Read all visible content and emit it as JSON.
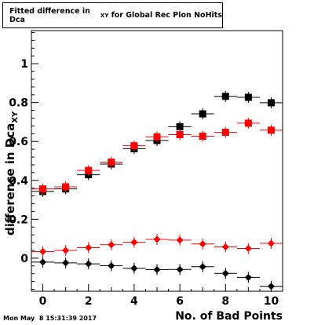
{
  "title": {
    "main": "Fitted difference in Dca",
    "sub": "XY",
    "rest": " for Global Rec Pion NoHits"
  },
  "ylabel": {
    "main": "difference in Dca",
    "sub": "XY"
  },
  "xlabel": "No. of Bad Points",
  "timestamp": "Mon May  8 15:31:39 2017",
  "colors": {
    "series_black": "#000000",
    "series_red": "#ff0000"
  },
  "chart_data": {
    "type": "scatter",
    "xlim": [
      -0.5,
      10.5
    ],
    "ylim": [
      -0.17,
      1.17
    ],
    "xticks": [
      0,
      2,
      4,
      6,
      8,
      10
    ],
    "yticks": [
      0,
      0.2,
      0.4,
      0.6,
      0.8,
      1
    ],
    "yticklabels": [
      "0",
      "0.2",
      "0.4",
      "0.6",
      "0.8",
      "1"
    ],
    "grid": false,
    "series": [
      {
        "marker": "square",
        "color": "#000000",
        "x": [
          0,
          1,
          2,
          3,
          4,
          5,
          6,
          7,
          8,
          9,
          10
        ],
        "y": [
          0.343,
          0.356,
          0.429,
          0.484,
          0.563,
          0.605,
          0.676,
          0.742,
          0.832,
          0.827,
          0.799
        ]
      },
      {
        "marker": "square",
        "color": "#ff0000",
        "x": [
          0,
          1,
          2,
          3,
          4,
          5,
          6,
          7,
          8,
          9,
          10
        ],
        "y": [
          0.356,
          0.367,
          0.451,
          0.494,
          0.578,
          0.624,
          0.635,
          0.627,
          0.647,
          0.694,
          0.658
        ]
      },
      {
        "marker": "diamond",
        "color": "#ff0000",
        "x": [
          0,
          1,
          2,
          3,
          4,
          5,
          6,
          7,
          8,
          9,
          10
        ],
        "y": [
          0.034,
          0.04,
          0.054,
          0.069,
          0.082,
          0.097,
          0.093,
          0.073,
          0.058,
          0.05,
          0.076
        ]
      },
      {
        "marker": "diamond",
        "color": "#000000",
        "x": [
          0,
          1,
          2,
          3,
          4,
          5,
          6,
          7,
          8,
          9,
          10
        ],
        "y": [
          -0.02,
          -0.024,
          -0.029,
          -0.039,
          -0.052,
          -0.059,
          -0.058,
          -0.044,
          -0.078,
          -0.099,
          -0.145
        ]
      }
    ]
  }
}
